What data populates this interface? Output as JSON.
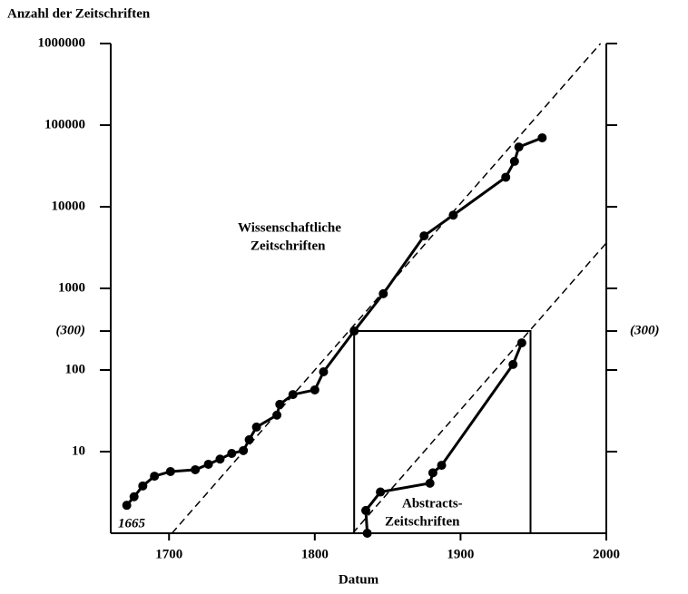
{
  "chart_data": {
    "type": "line",
    "title": "Anzahl der Zeitschriften",
    "xlabel": "Datum",
    "yscale": "log",
    "xlim": [
      1660,
      2000
    ],
    "ylim": [
      1,
      1000000
    ],
    "xticks": [
      1700,
      1800,
      1900,
      2000
    ],
    "yticks": [
      10,
      100,
      {
        "value": 300,
        "label": "(300)"
      },
      1000,
      10000,
      100000,
      1000000
    ],
    "color": "#000000",
    "series": [
      {
        "name": "Wissenschaftliche Zeitschriften",
        "x": [
          1671,
          1676,
          1682,
          1690,
          1701,
          1718,
          1727,
          1735,
          1743,
          1751,
          1755,
          1760,
          1774,
          1776,
          1785,
          1800,
          1806,
          1827,
          1847,
          1875,
          1895,
          1931,
          1937,
          1940,
          1956
        ],
        "values": [
          2.2,
          2.8,
          3.8,
          5,
          5.7,
          6,
          7,
          8.1,
          9.5,
          10.3,
          14,
          20,
          28,
          38,
          50,
          57,
          95,
          300,
          860,
          4400,
          7900,
          23000,
          36000,
          54000,
          70000
        ]
      },
      {
        "name": "Abstracts-Zeitschriften",
        "x": [
          1836,
          1835,
          1845,
          1879,
          1881,
          1887,
          1936,
          1942
        ],
        "values": [
          1,
          1.9,
          3.2,
          4.1,
          5.5,
          6.8,
          117,
          215
        ]
      }
    ],
    "trend_lines": [
      {
        "x": [
          1702,
          1996
        ],
        "values": [
          1,
          1000000
        ]
      },
      {
        "x": [
          1826,
          2000
        ],
        "values": [
          1,
          3600
        ]
      }
    ],
    "box": {
      "x": [
        1827,
        1948
      ],
      "values": [
        1,
        300
      ]
    },
    "annotations": [
      {
        "lines": [
          "Wissenschaftliche",
          "Zeitschriften"
        ]
      },
      {
        "lines": [
          "Abstracts-",
          "Zeitschriften"
        ]
      },
      {
        "lines": [
          "1665"
        ]
      }
    ]
  }
}
